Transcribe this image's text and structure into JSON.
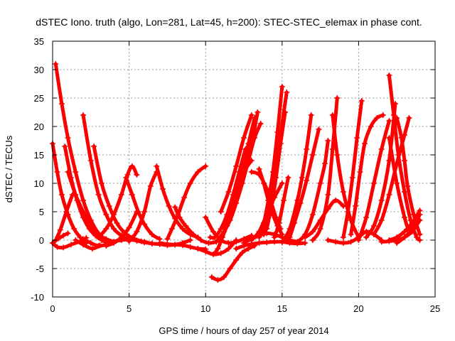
{
  "chart_data": {
    "type": "scatter",
    "title": "dSTEC Iono. truth (algo, Lon=281, Lat=45, h=200): STEC-STEC_elemax in phase cont.",
    "xlabel": "GPS time / hours of day 257 of year 2014",
    "ylabel": "dSTEC  / TECUs",
    "xlim": [
      0,
      25
    ],
    "ylim": [
      -10,
      35
    ],
    "xticks": [
      0,
      5,
      10,
      15,
      20,
      25
    ],
    "yticks": [
      -10,
      -5,
      0,
      5,
      10,
      15,
      20,
      25,
      30,
      35
    ],
    "grid": true,
    "legend": "none",
    "marker": "plus",
    "color": "#ff0000",
    "series": [
      {
        "x": [
          0.0,
          0.3,
          0.6,
          1.0,
          1.4,
          1.8,
          2.2
        ],
        "y": [
          17,
          12,
          8,
          4.5,
          2,
          0.5,
          -0.5
        ]
      },
      {
        "x": [
          0.2,
          0.6,
          1.0,
          1.5,
          2.0,
          2.5,
          3.0,
          3.5
        ],
        "y": [
          31,
          24,
          18,
          12,
          7,
          3.5,
          1.2,
          0
        ]
      },
      {
        "x": [
          0.8,
          1.2,
          1.6,
          2.0,
          2.4,
          2.8,
          3.2,
          3.6
        ],
        "y": [
          16.5,
          11,
          7,
          4,
          2,
          0.8,
          0,
          -0.4
        ]
      },
      {
        "x": [
          1.0,
          1.5,
          2.0,
          2.5,
          3.0,
          3.5,
          4.0
        ],
        "y": [
          12,
          8,
          5,
          2.5,
          1,
          0.2,
          -0.3
        ]
      },
      {
        "x": [
          2.0,
          2.5,
          3.0,
          3.5,
          4.0,
          4.5,
          5.0
        ],
        "y": [
          22,
          14,
          8,
          4.5,
          2,
          0.8,
          0
        ]
      },
      {
        "x": [
          2.7,
          3.2,
          3.7,
          4.2,
          4.7,
          5.2,
          5.8
        ],
        "y": [
          16.5,
          10,
          6,
          3,
          1.3,
          0.4,
          -0.2
        ]
      },
      {
        "x": [
          0.0,
          0.4,
          0.7,
          1.0
        ],
        "y": [
          -0.5,
          0.3,
          0.8,
          1.2
        ]
      },
      {
        "x": [
          0.0,
          0.3,
          0.7,
          1.2,
          1.8,
          2.2
        ],
        "y": [
          -0.5,
          -1.2,
          -1.3,
          -0.8,
          -0.2,
          0.4
        ]
      },
      {
        "x": [
          0.2,
          0.5,
          0.9,
          1.3
        ],
        "y": [
          0,
          1.8,
          5,
          8
        ]
      },
      {
        "x": [
          1.5,
          2.0,
          2.6,
          3.1
        ],
        "y": [
          0,
          -0.8,
          -1.5,
          -0.9
        ]
      },
      {
        "x": [
          2.0,
          2.5,
          3.0,
          3.5,
          4.0,
          4.5
        ],
        "y": [
          0.2,
          -0.5,
          -1.0,
          -0.8,
          -0.3,
          0.2
        ]
      },
      {
        "x": [
          3.5,
          4.0,
          4.5,
          5.0,
          5.5
        ],
        "y": [
          -1.0,
          -0.5,
          0.5,
          2.2,
          5.0
        ]
      },
      {
        "x": [
          3.0,
          3.5,
          4.0,
          4.5,
          4.9,
          5.2,
          5.5
        ],
        "y": [
          0.5,
          2.0,
          4.5,
          8.0,
          11.5,
          13.0,
          11.5
        ]
      },
      {
        "x": [
          4.8,
          5.2,
          5.6,
          6.0,
          6.5,
          7.0
        ],
        "y": [
          11.0,
          8.0,
          5.0,
          2.8,
          1.0,
          0.2
        ]
      },
      {
        "x": [
          4.0,
          4.5,
          5.0,
          5.5,
          6.0,
          6.5,
          7.0
        ],
        "y": [
          -0.3,
          0,
          0.1,
          -0.1,
          -0.3,
          -0.6,
          -0.7
        ]
      },
      {
        "x": [
          5.0,
          5.5,
          6.0,
          6.4,
          6.8
        ],
        "y": [
          -0.2,
          1.5,
          5.0,
          9.5,
          12.0
        ]
      },
      {
        "x": [
          5.0,
          5.5,
          6.0,
          6.5,
          7.0,
          7.5,
          8.0,
          8.5,
          9.0
        ],
        "y": [
          0.5,
          -0.1,
          -0.4,
          -0.6,
          -0.7,
          -0.9,
          -0.8,
          -0.5,
          0.0
        ]
      },
      {
        "x": [
          6.8,
          7.2,
          7.6,
          8.0,
          8.5,
          9.0,
          9.5
        ],
        "y": [
          13.0,
          9.0,
          6.0,
          3.8,
          2.0,
          1.0,
          0.5
        ]
      },
      {
        "x": [
          7.0,
          7.5,
          8.0,
          8.5,
          9.0,
          9.5,
          10.0
        ],
        "y": [
          -0.5,
          -0.7,
          -0.8,
          -0.9,
          -1.2,
          -1.5,
          -1.6
        ]
      },
      {
        "x": [
          7.5,
          7.8,
          8.2,
          8.6,
          9.0,
          9.5,
          10.0
        ],
        "y": [
          0.2,
          2.0,
          4.5,
          7.5,
          10.0,
          12.0,
          13.0
        ]
      },
      {
        "x": [
          8.0,
          8.3,
          8.7,
          9.2,
          9.7,
          10.2,
          10.7
        ],
        "y": [
          5.8,
          4.0,
          2.5,
          1.0,
          0.0,
          -0.5,
          -0.3
        ]
      },
      {
        "x": [
          9.5,
          10.0,
          10.5,
          11.0,
          11.5,
          12.0
        ],
        "y": [
          -1.5,
          -2.0,
          -2.5,
          -2.3,
          -1.5,
          0.0
        ]
      },
      {
        "x": [
          10.0,
          10.5,
          11.0,
          11.5,
          12.0,
          12.5,
          13.0
        ],
        "y": [
          4.0,
          1.5,
          0.0,
          -0.5,
          -0.3,
          0.2,
          0.8
        ]
      },
      {
        "x": [
          10.6,
          10.8,
          11.1,
          11.5,
          12.0,
          12.5,
          13.0
        ],
        "y": [
          -2.3,
          -1.5,
          0.5,
          3.5,
          8.5,
          12.0,
          14.0
        ]
      },
      {
        "x": [
          10.3,
          10.6,
          11.0,
          11.4,
          11.8,
          12.2,
          12.6
        ],
        "y": [
          0.5,
          0.5,
          2.0,
          4.5,
          8.0,
          12.0,
          16.0
        ]
      },
      {
        "x": [
          10.8,
          11.2,
          11.6,
          12.0,
          12.4,
          12.8,
          13.2,
          13.6
        ],
        "y": [
          0.0,
          1.5,
          3.5,
          6.5,
          10.0,
          14.0,
          18.0,
          20.5
        ]
      },
      {
        "x": [
          11.0,
          11.4,
          11.8,
          12.2,
          12.6,
          13.0,
          13.4
        ],
        "y": [
          0.3,
          2.5,
          5.5,
          9.0,
          13.0,
          17.0,
          22.5
        ]
      },
      {
        "x": [
          11.2,
          11.6,
          12.0,
          12.4,
          12.8,
          13.2
        ],
        "y": [
          2.0,
          5.0,
          8.5,
          12.5,
          17.0,
          21.5
        ]
      },
      {
        "x": [
          11.0,
          11.5,
          12.0,
          12.5,
          13.0
        ],
        "y": [
          5.0,
          8.5,
          13.0,
          18.0,
          22.0
        ]
      },
      {
        "x": [
          10.4,
          10.8,
          11.2,
          11.6,
          12.0,
          12.4,
          12.8,
          13.2
        ],
        "y": [
          -6.5,
          -7.0,
          -6.5,
          -5.0,
          -3.5,
          -2.2,
          -1.5,
          -1.0
        ]
      },
      {
        "x": [
          12.0,
          12.5,
          13.0,
          13.5,
          14.0,
          14.5,
          15.0,
          15.5,
          16.0,
          16.5
        ],
        "y": [
          -1.5,
          -1.0,
          -0.7,
          -0.5,
          -0.4,
          -0.3,
          -0.3,
          -0.5,
          -0.6,
          -0.5
        ]
      },
      {
        "x": [
          12.5,
          13.0,
          13.5,
          14.0,
          14.5,
          15.0,
          15.5,
          16.0
        ],
        "y": [
          -0.5,
          0.2,
          0.8,
          1.2,
          1.0,
          0.5,
          0.0,
          -0.3
        ]
      },
      {
        "x": [
          13.0,
          13.5,
          14.0,
          14.3,
          14.6,
          14.9
        ],
        "y": [
          12.0,
          11.5,
          9.0,
          6.5,
          4.0,
          2.0
        ]
      },
      {
        "x": [
          13.5,
          13.8,
          14.1,
          14.4,
          14.7,
          15.0
        ],
        "y": [
          12.5,
          10.0,
          7.0,
          4.5,
          2.5,
          1.0
        ]
      },
      {
        "x": [
          13.0,
          13.5,
          14.0,
          14.5,
          15.0
        ],
        "y": [
          0.0,
          1.5,
          4.5,
          7.5,
          10.0
        ]
      },
      {
        "x": [
          13.5,
          13.8,
          14.1,
          14.4,
          14.7,
          15.0
        ],
        "y": [
          0.5,
          3.0,
          7.0,
          12.0,
          19.0,
          27.0
        ]
      },
      {
        "x": [
          13.8,
          14.1,
          14.4,
          14.7,
          15.0,
          15.3
        ],
        "y": [
          1.0,
          4.0,
          8.5,
          14.0,
          20.5,
          26.0
        ]
      },
      {
        "x": [
          14.0,
          14.3,
          14.6,
          14.9,
          15.2
        ],
        "y": [
          2.0,
          6.0,
          11.0,
          17.0,
          22.5
        ]
      },
      {
        "x": [
          14.5,
          14.8,
          15.1,
          15.4
        ],
        "y": [
          0.5,
          3.0,
          7.0,
          11.0
        ]
      },
      {
        "x": [
          15.0,
          15.5,
          16.0,
          16.3,
          16.6,
          16.9
        ],
        "y": [
          -0.4,
          2.0,
          7.0,
          11.0,
          16.0,
          22.0
        ]
      },
      {
        "x": [
          15.5,
          15.8,
          16.2,
          16.6,
          17.0,
          17.4
        ],
        "y": [
          0.5,
          3.0,
          6.5,
          10.5,
          15.0,
          19.5
        ]
      },
      {
        "x": [
          16.0,
          16.5,
          17.0,
          17.5,
          17.8,
          18.0
        ],
        "y": [
          -0.3,
          1.0,
          4.5,
          10.0,
          13.5,
          17.5
        ]
      },
      {
        "x": [
          17.0,
          17.5,
          18.0,
          18.3,
          18.6
        ],
        "y": [
          0.0,
          2.0,
          8.0,
          16.0,
          25.0
        ]
      },
      {
        "x": [
          16.5,
          17.0,
          17.5,
          18.0,
          18.5,
          19.0
        ],
        "y": [
          0.5,
          1.5,
          3.5,
          5.5,
          7.0,
          6.0
        ]
      },
      {
        "x": [
          18.3,
          18.6,
          19.0,
          19.5,
          20.0
        ],
        "y": [
          22.0,
          15.0,
          8.5,
          3.5,
          0.5
        ]
      },
      {
        "x": [
          18.0,
          18.5,
          19.0,
          19.5,
          20.0,
          20.5,
          21.0,
          21.5
        ],
        "y": [
          0.0,
          -0.3,
          -0.5,
          -0.3,
          0.5,
          1.5,
          1.0,
          0.0
        ]
      },
      {
        "x": [
          19.0,
          19.3,
          19.6,
          19.9,
          20.2
        ],
        "y": [
          0.5,
          5.0,
          11.0,
          18.0,
          24.5
        ]
      },
      {
        "x": [
          19.5,
          19.8,
          20.1,
          20.4,
          20.8,
          21.2,
          21.6
        ],
        "y": [
          1.0,
          6.0,
          12.0,
          17.0,
          20.0,
          21.5,
          22.0
        ]
      },
      {
        "x": [
          20.0,
          20.5,
          21.0,
          21.5,
          22.0
        ],
        "y": [
          0.0,
          4.0,
          10.0,
          16.0,
          21.0
        ]
      },
      {
        "x": [
          20.5,
          21.0,
          21.5,
          22.0,
          22.4
        ],
        "y": [
          0.5,
          2.5,
          7.0,
          14.0,
          24.0
        ]
      },
      {
        "x": [
          22.0,
          22.3,
          22.6,
          23.0,
          23.4,
          23.8,
          24.0
        ],
        "y": [
          29.0,
          22.0,
          15.0,
          8.5,
          3.5,
          0.5,
          0.0
        ]
      },
      {
        "x": [
          22.5,
          22.8,
          23.0,
          23.2,
          23.6,
          24.0
        ],
        "y": [
          21.5,
          18.0,
          14.0,
          9.5,
          4.5,
          1.0
        ]
      },
      {
        "x": [
          21.0,
          21.5,
          22.0,
          22.5,
          23.0,
          23.3
        ],
        "y": [
          1.0,
          3.5,
          8.0,
          13.5,
          18.5,
          21.5
        ]
      },
      {
        "x": [
          21.5,
          22.0,
          22.5,
          23.0,
          23.5,
          24.0
        ],
        "y": [
          -0.3,
          -0.2,
          0.0,
          0.5,
          1.5,
          3.5
        ]
      },
      {
        "x": [
          22.0,
          22.5,
          23.0,
          23.5,
          24.0
        ],
        "y": [
          0.0,
          0.5,
          1.5,
          3.0,
          5.2
        ]
      },
      {
        "x": [
          22.5,
          23.0,
          23.5,
          24.0
        ],
        "y": [
          -0.5,
          0.5,
          2.0,
          4.5
        ]
      },
      {
        "x": [
          22.0,
          22.5,
          23.0,
          23.3
        ],
        "y": [
          18.0,
          10.0,
          4.0,
          1.5
        ]
      }
    ]
  }
}
